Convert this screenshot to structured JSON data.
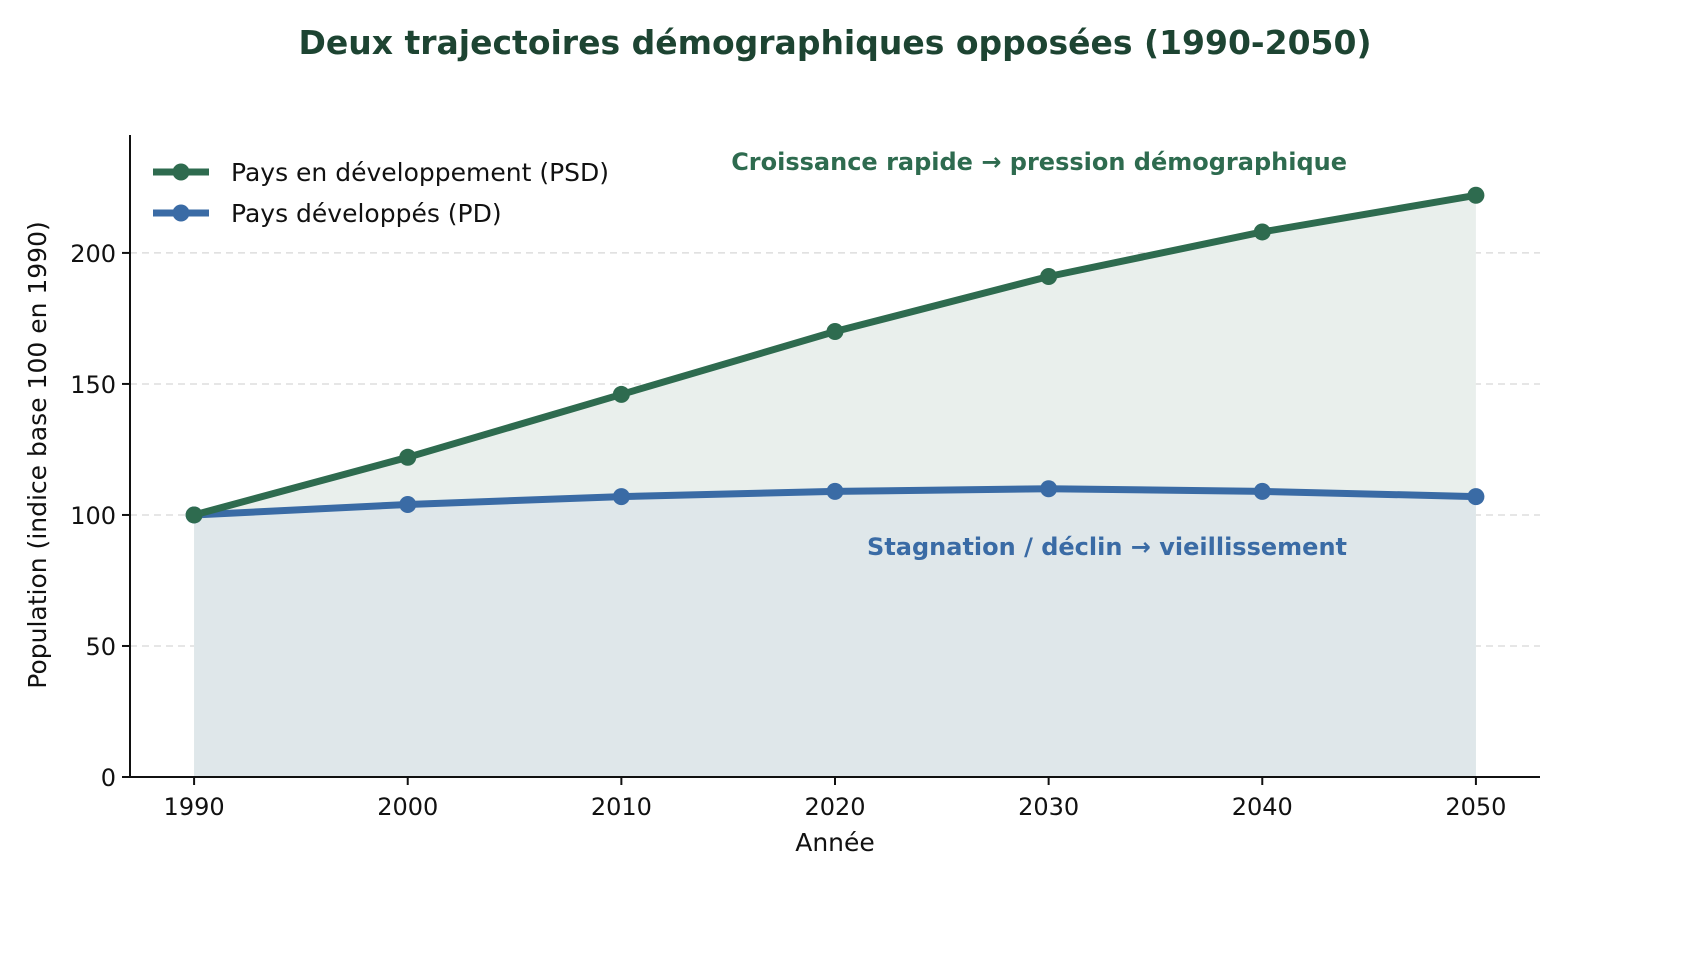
{
  "chart_data": {
    "type": "area",
    "title": "Deux trajectoires démographiques opposées (1990-2050)",
    "xlabel": "Année",
    "ylabel": "Population (indice base 100 en 1990)",
    "x": [
      1990,
      2000,
      2010,
      2020,
      2030,
      2040,
      2050
    ],
    "xlim": [
      1987,
      2053
    ],
    "ylim": [
      0,
      245
    ],
    "xticks": [
      "1990",
      "2000",
      "2010",
      "2020",
      "2030",
      "2040",
      "2050"
    ],
    "yticks": [
      "0",
      "50",
      "100",
      "150",
      "200"
    ],
    "grid": "horizontal dashed",
    "legend_position": "top-left",
    "series": [
      {
        "name": "Pays en développement (PSD)",
        "values": [
          100,
          122,
          146,
          170,
          191,
          208,
          222
        ],
        "color": "#2e6b4f",
        "fill": "#e9efec"
      },
      {
        "name": "Pays développés (PD)",
        "values": [
          100,
          104,
          107,
          109,
          110,
          109,
          107
        ],
        "color": "#3a6ba5",
        "fill": "#dfe7ea"
      }
    ],
    "annotations": [
      {
        "text": "Croissance rapide → pression démographique",
        "color": "#2e6b4f"
      },
      {
        "text": "Stagnation / déclin → vieillissement",
        "color": "#3a6ba5"
      }
    ],
    "title_color": "#1d4432"
  }
}
